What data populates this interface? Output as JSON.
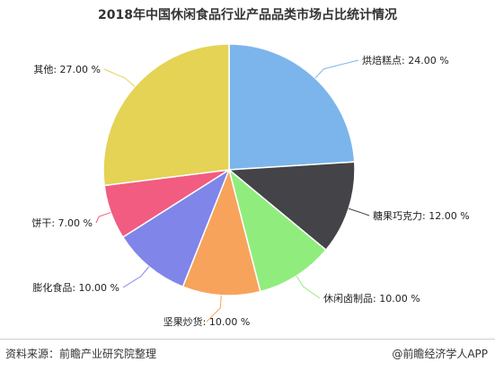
{
  "chart_data": {
    "type": "pie",
    "title": "2018年中国休闲食品行业产品品类市场占比统计情况",
    "slices": [
      {
        "label": "烘焙糕点: 24.00 %",
        "value": 24.0,
        "color": "#7cb5ec"
      },
      {
        "label": "糖果巧克力: 12.00 %",
        "value": 12.0,
        "color": "#434348"
      },
      {
        "label": "休闲卤制品: 10.00 %",
        "value": 10.0,
        "color": "#90ed7d"
      },
      {
        "label": "坚果炒货: 10.00 %",
        "value": 10.0,
        "color": "#f7a35c"
      },
      {
        "label": "膨化食品: 10.00 %",
        "value": 10.0,
        "color": "#8085e9"
      },
      {
        "label": "饼干: 7.00 %",
        "value": 7.0,
        "color": "#f15c80"
      },
      {
        "label": "其他: 27.00 %",
        "value": 27.0,
        "color": "#e4d354"
      }
    ]
  },
  "footer": {
    "source": "资料来源：前瞻产业研究院整理",
    "credit": "@前瞻经济学人APP"
  }
}
